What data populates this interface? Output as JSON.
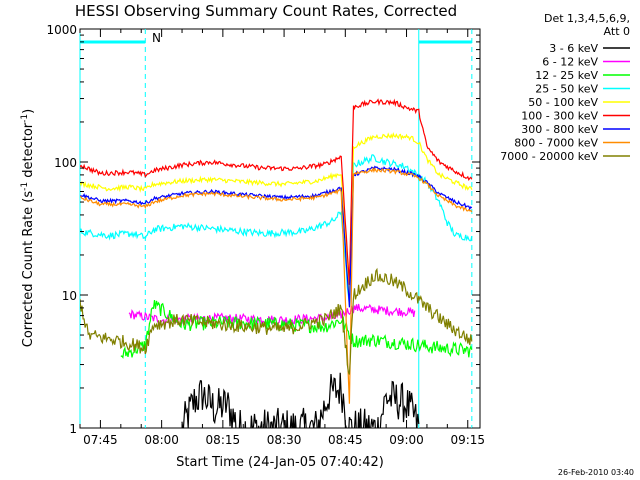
{
  "chart_data": {
    "type": "line",
    "title": "HESSI Observing Summary Count Rates, Corrected",
    "xlabel": "Start Time (24-Jan-05 07:40:42)",
    "ylabel": "Corrected Count Rate (s-1 detector-1)",
    "ylabel_parts": [
      "Corrected Count Rate (s",
      "-1",
      " detector",
      "-1",
      ")"
    ],
    "yscale": "log",
    "ylim": [
      1,
      1000
    ],
    "xlim": [
      "07:40",
      "09:18"
    ],
    "x_ticks": [
      "07:45",
      "08:00",
      "08:15",
      "08:30",
      "08:45",
      "09:00",
      "09:15"
    ],
    "y_ticks": [
      "1",
      "10",
      "100",
      "1000"
    ],
    "legend": {
      "placement": "right",
      "header": [
        "Det 1,3,4,5,6,9,",
        "Att 0"
      ]
    },
    "night_flag": "N",
    "footer_timestamp": "26-Feb-2010 03:40",
    "flag_bars": [
      {
        "from": "07:40",
        "to": "07:56",
        "label": "N"
      },
      {
        "from": "09:03",
        "to": "09:16",
        "label": ""
      }
    ],
    "flag_lines": [
      {
        "time": "07:40",
        "style": "solid"
      },
      {
        "time": "07:56",
        "style": "dashed"
      },
      {
        "time": "09:03",
        "style": "solid"
      },
      {
        "time": "09:16",
        "style": "dashed"
      }
    ],
    "series": [
      {
        "name": "3 - 6 keV",
        "color": "#000000",
        "noise": 0.35,
        "points": [
          [
            "08:05",
            1
          ],
          [
            "08:08",
            1.6
          ],
          [
            "08:10",
            1.8
          ],
          [
            "08:13",
            1.4
          ],
          [
            "08:16",
            1.5
          ],
          [
            "08:19",
            1
          ],
          [
            "08:38",
            1
          ],
          [
            "08:41",
            1.8
          ],
          [
            "08:44",
            2.0
          ],
          [
            "08:46",
            1
          ],
          [
            "08:53",
            1
          ],
          [
            "08:55",
            1.7
          ],
          [
            "08:58",
            1.6
          ],
          [
            "09:00",
            1.5
          ],
          [
            "09:02",
            1.2
          ],
          [
            "09:03",
            1
          ]
        ]
      },
      {
        "name": "6 - 12 keV",
        "color": "#ff00ff",
        "noise": 0.08,
        "points": [
          [
            "07:52",
            7.2
          ],
          [
            "08:00",
            6.5
          ],
          [
            "08:15",
            6.7
          ],
          [
            "08:30",
            6.5
          ],
          [
            "08:43",
            6.8
          ],
          [
            "08:47",
            8.0
          ],
          [
            "08:52",
            7.8
          ],
          [
            "08:56",
            7.6
          ],
          [
            "09:00",
            7.5
          ],
          [
            "09:02",
            7.3
          ]
        ]
      },
      {
        "name": "12 - 25 keV",
        "color": "#00ff00",
        "noise": 0.12,
        "points": [
          [
            "07:50",
            3.5
          ],
          [
            "07:56",
            4.2
          ],
          [
            "07:58",
            8.5
          ],
          [
            "08:02",
            7.0
          ],
          [
            "08:05",
            6.0
          ],
          [
            "08:15",
            6.2
          ],
          [
            "08:30",
            6.0
          ],
          [
            "08:40",
            5.8
          ],
          [
            "08:44",
            6.5
          ],
          [
            "08:47",
            4.5
          ],
          [
            "08:52",
            4.6
          ],
          [
            "09:00",
            4.3
          ],
          [
            "09:08",
            4.0
          ],
          [
            "09:16",
            3.8
          ]
        ]
      },
      {
        "name": "25 - 50 keV",
        "color": "#00ffff",
        "noise": 0.06,
        "points": [
          [
            "07:40",
            30
          ],
          [
            "07:47",
            28
          ],
          [
            "07:53",
            29
          ],
          [
            "07:56",
            27
          ],
          [
            "07:58",
            31
          ],
          [
            "08:05",
            33
          ],
          [
            "08:15",
            31
          ],
          [
            "08:25",
            29
          ],
          [
            "08:35",
            30
          ],
          [
            "08:42",
            36
          ],
          [
            "08:44",
            42
          ],
          [
            "08:46",
            8
          ],
          [
            "08:47",
            95
          ],
          [
            "08:52",
            108
          ],
          [
            "08:55",
            100
          ],
          [
            "09:00",
            92
          ],
          [
            "09:03",
            78
          ],
          [
            "09:05",
            70
          ],
          [
            "09:08",
            50
          ],
          [
            "09:10",
            35
          ],
          [
            "09:12",
            28
          ],
          [
            "09:16",
            27
          ]
        ]
      },
      {
        "name": "50 - 100 keV",
        "color": "#ffff00",
        "noise": 0.04,
        "points": [
          [
            "07:40",
            69
          ],
          [
            "07:47",
            63
          ],
          [
            "07:52",
            65
          ],
          [
            "07:56",
            62
          ],
          [
            "07:58",
            68
          ],
          [
            "08:05",
            72
          ],
          [
            "08:12",
            74
          ],
          [
            "08:20",
            71
          ],
          [
            "08:30",
            68
          ],
          [
            "08:38",
            72
          ],
          [
            "08:44",
            82
          ],
          [
            "08:46",
            10
          ],
          [
            "08:47",
            130
          ],
          [
            "08:52",
            155
          ],
          [
            "08:57",
            158
          ],
          [
            "09:01",
            153
          ],
          [
            "09:03",
            140
          ],
          [
            "09:05",
            105
          ],
          [
            "09:08",
            80
          ],
          [
            "09:12",
            70
          ],
          [
            "09:16",
            62
          ]
        ]
      },
      {
        "name": "100 - 300 keV",
        "color": "#ff0000",
        "noise": 0.04,
        "points": [
          [
            "07:40",
            95
          ],
          [
            "07:45",
            82
          ],
          [
            "07:52",
            84
          ],
          [
            "07:56",
            80
          ],
          [
            "07:58",
            86
          ],
          [
            "08:05",
            95
          ],
          [
            "08:12",
            100
          ],
          [
            "08:18",
            95
          ],
          [
            "08:25",
            90
          ],
          [
            "08:33",
            89
          ],
          [
            "08:40",
            96
          ],
          [
            "08:44",
            110
          ],
          [
            "08:46",
            12
          ],
          [
            "08:47",
            260
          ],
          [
            "08:52",
            285
          ],
          [
            "08:57",
            280
          ],
          [
            "09:01",
            250
          ],
          [
            "09:03",
            240
          ],
          [
            "09:05",
            130
          ],
          [
            "09:08",
            100
          ],
          [
            "09:12",
            85
          ],
          [
            "09:16",
            74
          ]
        ]
      },
      {
        "name": "300 - 800 keV",
        "color": "#0000ff",
        "noise": 0.03,
        "points": [
          [
            "07:40",
            57
          ],
          [
            "07:45",
            51
          ],
          [
            "07:52",
            51
          ],
          [
            "07:56",
            49
          ],
          [
            "07:58",
            53
          ],
          [
            "08:05",
            58
          ],
          [
            "08:12",
            60
          ],
          [
            "08:20",
            57
          ],
          [
            "08:30",
            54
          ],
          [
            "08:38",
            56
          ],
          [
            "08:44",
            64
          ],
          [
            "08:46",
            8
          ],
          [
            "08:47",
            80
          ],
          [
            "08:52",
            90
          ],
          [
            "08:57",
            88
          ],
          [
            "09:01",
            82
          ],
          [
            "09:03",
            78
          ],
          [
            "09:05",
            70
          ],
          [
            "09:08",
            58
          ],
          [
            "09:12",
            50
          ],
          [
            "09:16",
            45
          ]
        ]
      },
      {
        "name": "800 - 7000 keV",
        "color": "#ff8c00",
        "noise": 0.03,
        "points": [
          [
            "07:40",
            54
          ],
          [
            "07:45",
            48
          ],
          [
            "07:52",
            48
          ],
          [
            "07:56",
            46
          ],
          [
            "07:58",
            50
          ],
          [
            "08:05",
            56
          ],
          [
            "08:12",
            58
          ],
          [
            "08:20",
            55
          ],
          [
            "08:30",
            52
          ],
          [
            "08:38",
            54
          ],
          [
            "08:44",
            61
          ],
          [
            "08:46",
            1.5
          ],
          [
            "08:47",
            82
          ],
          [
            "08:52",
            87
          ],
          [
            "08:57",
            85
          ],
          [
            "09:01",
            80
          ],
          [
            "09:03",
            76
          ],
          [
            "09:05",
            68
          ],
          [
            "09:08",
            55
          ],
          [
            "09:12",
            47
          ],
          [
            "09:16",
            42
          ]
        ]
      },
      {
        "name": "7000 - 20000 keV",
        "color": "#808000",
        "noise": 0.12,
        "points": [
          [
            "07:40",
            9
          ],
          [
            "07:42",
            5
          ],
          [
            "07:50",
            4.5
          ],
          [
            "07:56",
            4.0
          ],
          [
            "07:58",
            6.0
          ],
          [
            "08:05",
            6.5
          ],
          [
            "08:15",
            6.0
          ],
          [
            "08:30",
            5.5
          ],
          [
            "08:40",
            6.5
          ],
          [
            "08:44",
            8.0
          ],
          [
            "08:46",
            2.5
          ],
          [
            "08:47",
            10
          ],
          [
            "08:52",
            14
          ],
          [
            "08:56",
            13
          ],
          [
            "09:00",
            11
          ],
          [
            "09:05",
            8
          ],
          [
            "09:10",
            6
          ],
          [
            "09:16",
            4.5
          ]
        ]
      }
    ]
  }
}
